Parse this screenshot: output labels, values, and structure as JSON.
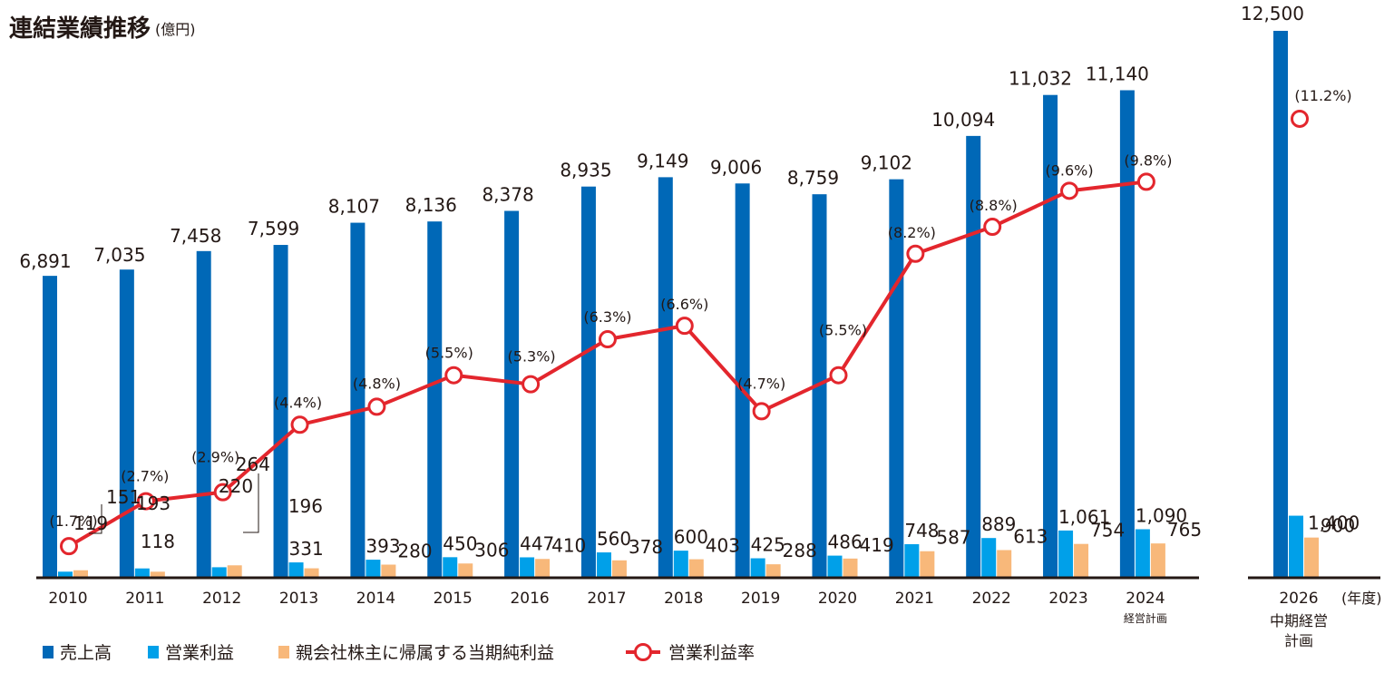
{
  "chart_data": {
    "type": "bar",
    "title": "連結業績推移",
    "unit": "(億円)",
    "x_unit": "(年度)",
    "colors": {
      "sales": "#0068b7",
      "op_income": "#00a0e9",
      "net_income": "#f8b87a",
      "op_margin": "#e3262d"
    },
    "categories": [
      "2010",
      "2011",
      "2012",
      "2013",
      "2014",
      "2015",
      "2016",
      "2017",
      "2018",
      "2019",
      "2020",
      "2021",
      "2022",
      "2023",
      "2024"
    ],
    "category_notes": {
      "2024": "経営計画"
    },
    "series": [
      {
        "name": "売上高",
        "key": "sales",
        "values": [
          6891,
          7035,
          7458,
          7599,
          8107,
          8136,
          8378,
          8935,
          9149,
          9006,
          8759,
          9102,
          10094,
          11032,
          11140
        ]
      },
      {
        "name": "営業利益",
        "key": "op_income",
        "values": [
          119,
          193,
          220,
          331,
          393,
          450,
          447,
          560,
          600,
          425,
          486,
          748,
          889,
          1061,
          1090
        ]
      },
      {
        "name": "親会社株主に帰属する当期純利益",
        "key": "net_income",
        "values": [
          151,
          118,
          264,
          196,
          280,
          306,
          410,
          378,
          403,
          288,
          419,
          587,
          613,
          754,
          765
        ]
      },
      {
        "name": "営業利益率",
        "key": "op_margin",
        "type": "line",
        "values": [
          1.7,
          2.7,
          2.9,
          4.4,
          4.8,
          5.5,
          5.3,
          6.3,
          6.6,
          4.7,
          5.5,
          8.2,
          8.8,
          9.6,
          9.8
        ]
      }
    ],
    "value_labels": {
      "sales": [
        "6,891",
        "7,035",
        "7,458",
        "7,599",
        "8,107",
        "8,136",
        "8,378",
        "8,935",
        "9,149",
        "9,006",
        "8,759",
        "9,102",
        "10,094",
        "11,032",
        "11,140"
      ],
      "op_income": [
        "119",
        "193",
        "220",
        "331",
        "393",
        "450",
        "447",
        "560",
        "600",
        "425",
        "486",
        "748",
        "889",
        "1,061",
        "1,090"
      ],
      "net_income": [
        "151",
        "118",
        "264",
        "196",
        "280",
        "306",
        "410",
        "378",
        "403",
        "288",
        "419",
        "587",
        "613",
        "754",
        "765"
      ],
      "op_margin": [
        "(1.7%)",
        "(2.7%)",
        "(2.9%)",
        "(4.4%)",
        "(4.8%)",
        "(5.5%)",
        "(5.3%)",
        "(6.3%)",
        "(6.6%)",
        "(4.7%)",
        "(5.5%)",
        "(8.2%)",
        "(8.8%)",
        "(9.6%)",
        "(9.8%)"
      ]
    },
    "plan": {
      "category": "2026",
      "note": "中期経営計画",
      "sales": 12500,
      "op_income": 1400,
      "net_income": 900,
      "op_margin": 11.2,
      "labels": {
        "sales": "12,500",
        "op_income": "1,400",
        "net_income": "900",
        "op_margin": "(11.2%)"
      }
    },
    "ylim": [
      0,
      12500
    ],
    "legend_position": "bottom-left",
    "grid": false
  }
}
